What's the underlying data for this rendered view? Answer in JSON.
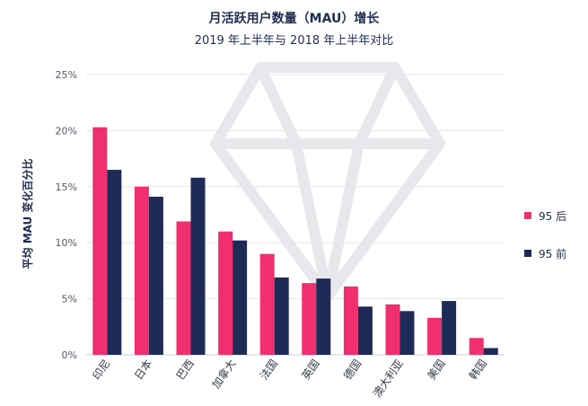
{
  "chart_data": {
    "type": "bar",
    "title": "月活跃用户数量（MAU）增长",
    "subtitle": "2019 年上半年与 2018 年上半年对比",
    "ylabel": "平均 MAU 变化百分比",
    "xlabel": "",
    "ylim": [
      0,
      25
    ],
    "yticks": [
      "0%",
      "5%",
      "10%",
      "15%",
      "20%",
      "25%"
    ],
    "grid": true,
    "legend_position": "right",
    "categories": [
      "印尼",
      "日本",
      "巴西",
      "加拿大",
      "法国",
      "英国",
      "德国",
      "澳大利亚",
      "美国",
      "韩国"
    ],
    "series": [
      {
        "name": "95 后",
        "color": "#f0306e",
        "values": [
          20.3,
          15.0,
          11.9,
          11.0,
          9.0,
          6.4,
          6.1,
          4.5,
          3.3,
          1.5
        ]
      },
      {
        "name": "95 前",
        "color": "#1e2b57",
        "values": [
          16.5,
          14.1,
          15.8,
          10.2,
          6.9,
          6.8,
          4.3,
          3.9,
          4.8,
          0.6
        ]
      }
    ]
  }
}
